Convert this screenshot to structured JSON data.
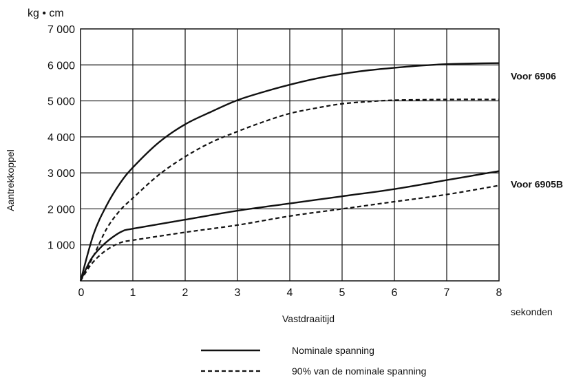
{
  "chart_data": {
    "type": "line",
    "y_unit_label": "kg • cm",
    "ylabel": "Aantrekkoppel",
    "xlabel": "Vastdraaitijd",
    "x_unit_label": "sekonden",
    "xlim": [
      0,
      8
    ],
    "ylim": [
      0,
      7000
    ],
    "grid": true,
    "x_ticks": [
      {
        "value": 0,
        "label": "0"
      },
      {
        "value": 1,
        "label": "1"
      },
      {
        "value": 2,
        "label": "2"
      },
      {
        "value": 3,
        "label": "3"
      },
      {
        "value": 4,
        "label": "4"
      },
      {
        "value": 5,
        "label": "5"
      },
      {
        "value": 6,
        "label": "6"
      },
      {
        "value": 7,
        "label": "7"
      },
      {
        "value": 8,
        "label": "8"
      }
    ],
    "y_ticks": [
      {
        "value": 1000,
        "label": "1 000"
      },
      {
        "value": 2000,
        "label": "2 000"
      },
      {
        "value": 3000,
        "label": "3 000"
      },
      {
        "value": 4000,
        "label": "4 000"
      },
      {
        "value": 5000,
        "label": "5 000"
      },
      {
        "value": 6000,
        "label": "6 000"
      },
      {
        "value": 7000,
        "label": "7 000"
      }
    ],
    "series": [
      {
        "style": "solid",
        "x": [
          0,
          0.25,
          0.5,
          0.75,
          1,
          1.5,
          2,
          2.5,
          3,
          3.5,
          4,
          4.5,
          5,
          5.5,
          6,
          6.5,
          7,
          7.5,
          8
        ],
        "y": [
          0,
          1300,
          2100,
          2700,
          3150,
          3850,
          4350,
          4700,
          5020,
          5250,
          5450,
          5620,
          5750,
          5850,
          5920,
          5980,
          6020,
          6040,
          6050
        ]
      },
      {
        "style": "dashed",
        "x": [
          0,
          0.25,
          0.5,
          0.75,
          1,
          1.5,
          2,
          2.5,
          3,
          3.5,
          4,
          4.5,
          5,
          5.5,
          6,
          7,
          8
        ],
        "y": [
          0,
          700,
          1450,
          1950,
          2300,
          2950,
          3450,
          3850,
          4150,
          4420,
          4650,
          4800,
          4920,
          4980,
          5020,
          5040,
          5040
        ]
      },
      {
        "style": "solid",
        "x": [
          0,
          0.2,
          0.4,
          0.6,
          0.8,
          1,
          2,
          3,
          4,
          5,
          6,
          7,
          8
        ],
        "y": [
          0,
          600,
          950,
          1200,
          1380,
          1450,
          1700,
          1950,
          2150,
          2350,
          2550,
          2800,
          3050
        ]
      },
      {
        "style": "dashed",
        "x": [
          0,
          0.2,
          0.4,
          0.6,
          0.8,
          1,
          2,
          3,
          4,
          5,
          6,
          7,
          8
        ],
        "y": [
          0,
          450,
          750,
          950,
          1080,
          1130,
          1350,
          1550,
          1800,
          2000,
          2200,
          2400,
          2650
        ]
      }
    ],
    "annotations": [
      {
        "text": "Voor 6906",
        "y": 6050
      },
      {
        "text": "Voor 6905B",
        "y": 3050
      }
    ],
    "legend": [
      {
        "style": "solid",
        "label": "Nominale spanning"
      },
      {
        "style": "dashed",
        "label": "90% van de nominale spanning"
      }
    ]
  }
}
